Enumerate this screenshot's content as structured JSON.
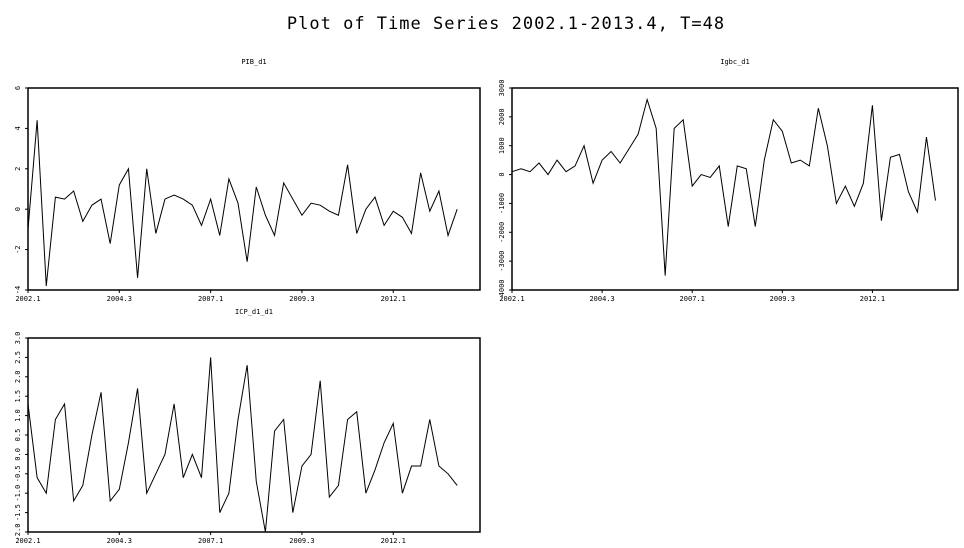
{
  "title": "Plot of Time Series 2002.1-2013.4, T=48",
  "chart_data": [
    {
      "type": "line",
      "title": "PIB_d1",
      "color": "#000000",
      "categories": [
        "2002.1",
        null,
        null,
        null,
        null,
        null,
        null,
        null,
        null,
        null,
        "2004.3",
        null,
        null,
        null,
        null,
        null,
        null,
        null,
        null,
        null,
        "2007.1",
        null,
        null,
        null,
        null,
        null,
        null,
        null,
        null,
        null,
        "2009.3",
        null,
        null,
        null,
        null,
        null,
        null,
        null,
        null,
        null,
        "2012.1",
        null,
        null,
        null,
        null,
        null,
        null,
        null
      ],
      "values": [
        -1,
        4.4,
        -3.8,
        0.6,
        0.5,
        0.9,
        -0.6,
        0.2,
        0.5,
        -1.7,
        1.2,
        2.0,
        -3.4,
        2.0,
        -1.2,
        0.5,
        0.7,
        0.5,
        0.2,
        -0.8,
        0.5,
        -1.3,
        1.5,
        0.3,
        -2.6,
        1.1,
        -0.3,
        -1.3,
        1.3,
        0.5,
        -0.3,
        0.3,
        0.2,
        -0.1,
        -0.3,
        2.2,
        -1.2,
        0,
        0.6,
        -0.8,
        -0.1,
        -0.4,
        -1.2,
        1.8,
        -0.1,
        0.9,
        -1.3,
        0
      ],
      "ylim": [
        -4,
        6
      ],
      "yticks": [
        -4,
        -2,
        0,
        2,
        4,
        6
      ]
    },
    {
      "type": "line",
      "title": "Igbc_d1",
      "color": "#000000",
      "categories": [
        "2002.1",
        null,
        null,
        null,
        null,
        null,
        null,
        null,
        null,
        null,
        "2004.3",
        null,
        null,
        null,
        null,
        null,
        null,
        null,
        null,
        null,
        "2007.1",
        null,
        null,
        null,
        null,
        null,
        null,
        null,
        null,
        null,
        "2009.3",
        null,
        null,
        null,
        null,
        null,
        null,
        null,
        null,
        null,
        "2012.1",
        null,
        null,
        null,
        null,
        null,
        null,
        null
      ],
      "values": [
        100,
        200,
        100,
        400,
        0,
        500,
        100,
        300,
        1000,
        -300,
        500,
        800,
        400,
        900,
        1400,
        2600,
        1600,
        -3500,
        1600,
        1900,
        -400,
        0,
        -100,
        300,
        -1800,
        300,
        200,
        -1800,
        500,
        1900,
        1500,
        400,
        500,
        300,
        2300,
        1000,
        -1000,
        -400,
        -1100,
        -300,
        2400,
        -1600,
        600,
        700,
        -600,
        -1300,
        1300,
        -900
      ],
      "ylim": [
        -4000,
        3000
      ],
      "yticks": [
        -4000,
        -3000,
        -2000,
        -1000,
        0,
        1000,
        2000,
        3000
      ]
    },
    {
      "type": "line",
      "title": "ICP_d1_d1",
      "color": "#000000",
      "categories": [
        "2002.1",
        null,
        null,
        null,
        null,
        null,
        null,
        null,
        null,
        null,
        "2004.3",
        null,
        null,
        null,
        null,
        null,
        null,
        null,
        null,
        null,
        "2007.1",
        null,
        null,
        null,
        null,
        null,
        null,
        null,
        null,
        null,
        "2009.3",
        null,
        null,
        null,
        null,
        null,
        null,
        null,
        null,
        null,
        "2012.1",
        null,
        null,
        null,
        null,
        null,
        null,
        null
      ],
      "values": [
        1.3,
        -0.6,
        -1.0,
        0.9,
        1.3,
        -1.2,
        -0.8,
        0.5,
        1.6,
        -1.2,
        -0.9,
        0.3,
        1.7,
        -1.0,
        -0.5,
        0,
        1.3,
        -0.6,
        0,
        -0.6,
        2.5,
        -1.5,
        -1.0,
        0.9,
        2.3,
        -0.7,
        -2.0,
        0.6,
        0.9,
        -1.5,
        -0.3,
        0,
        1.9,
        -1.1,
        -0.8,
        0.9,
        1.1,
        -1.0,
        -0.4,
        0.3,
        0.8,
        -1.0,
        -0.3,
        -0.3,
        0.9,
        -0.3,
        -0.5,
        -0.8
      ],
      "ylim": [
        -2,
        3
      ],
      "yticks": [
        {
          "value": -2,
          "label": "-2.0"
        },
        {
          "value": -1.5,
          "label": "-1.5"
        },
        {
          "value": -1,
          "label": "-1.0"
        },
        {
          "value": -0.5,
          "label": "-0.5"
        },
        {
          "value": 0,
          "label": "0.0"
        },
        {
          "value": 0.5,
          "label": "0.5"
        },
        {
          "value": 1,
          "label": "1.0"
        },
        {
          "value": 1.5,
          "label": "1.5"
        },
        {
          "value": 2,
          "label": "2.0"
        },
        {
          "value": 2.5,
          "label": "2.5"
        },
        {
          "value": 3,
          "label": "3.0"
        }
      ]
    }
  ]
}
